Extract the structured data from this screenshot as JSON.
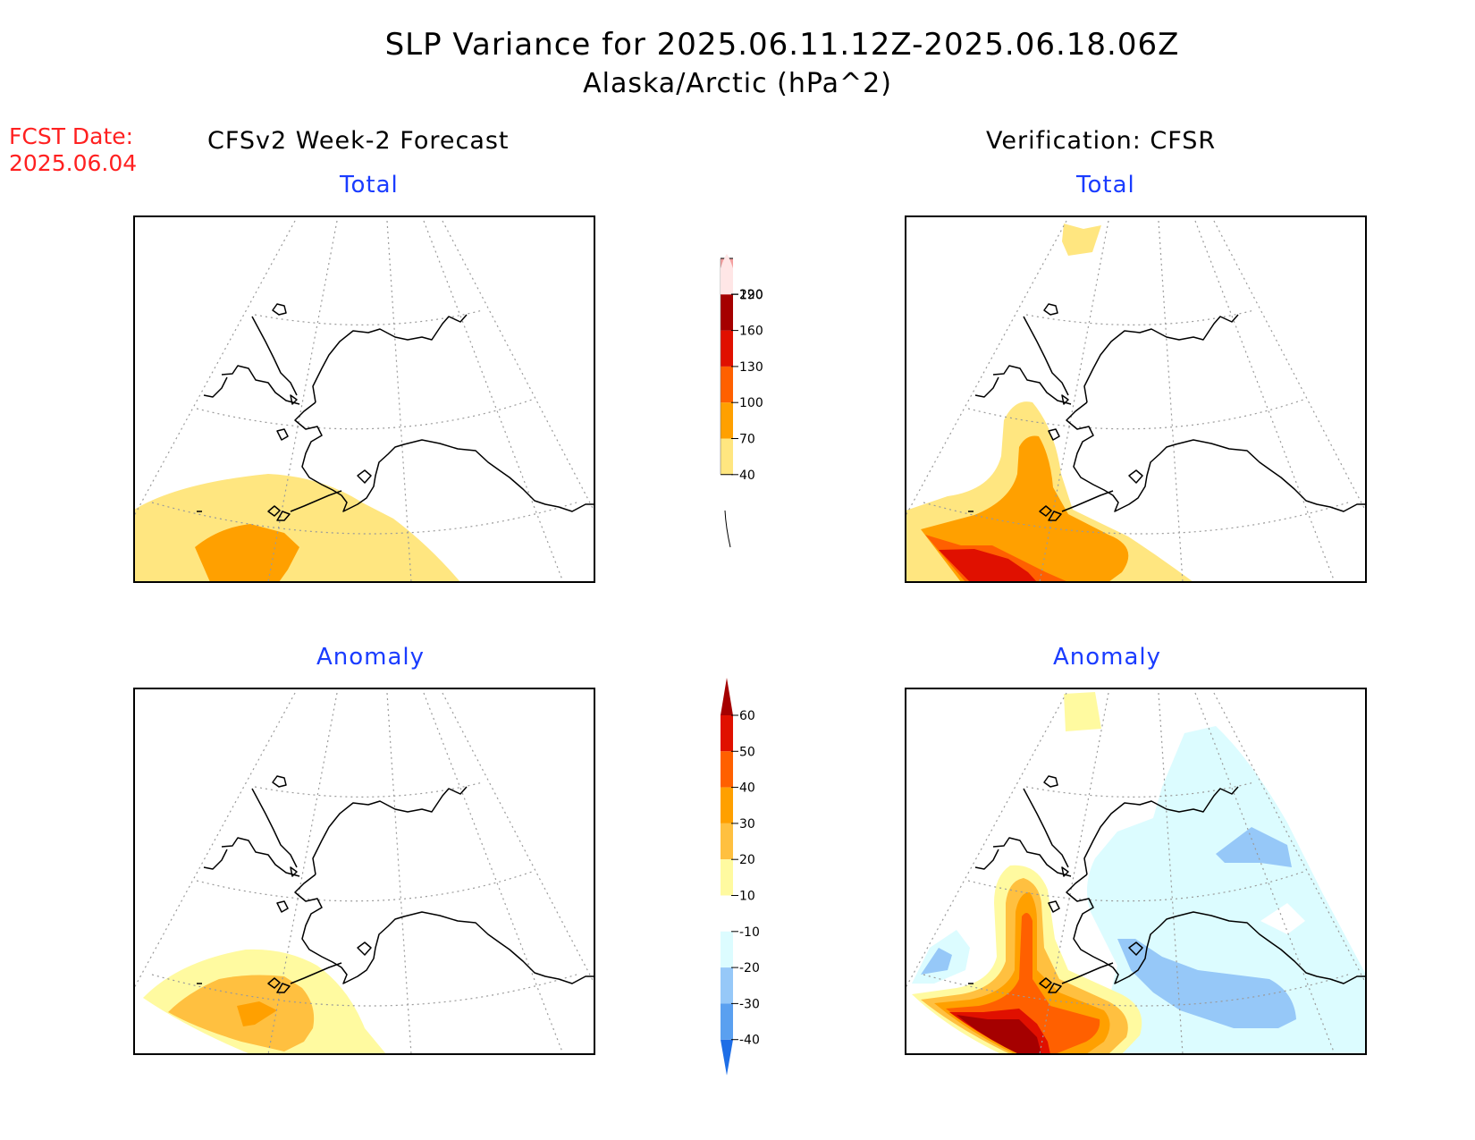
{
  "title": "SLP Variance for 2025.06.11.12Z-2025.06.18.06Z",
  "subtitle": "Alaska/Arctic (hPa^2)",
  "fcst_date": {
    "label": "FCST Date:",
    "value": "2025.06.04"
  },
  "left_header": "CFSv2 Week-2 Forecast",
  "right_header": "Verification: CFSR",
  "panels": {
    "forecast_total": "Total",
    "verification_total": "Total",
    "forecast_anomaly": "Anomaly",
    "verification_anomaly": "Anomaly"
  },
  "colors": {
    "total_bins": [
      "#ffe680",
      "#ffa000",
      "#ff6000",
      "#e01000",
      "#a50000",
      "#f4a0a0",
      "#ffe0e0"
    ],
    "anomaly_bins": [
      "#1e6ee6",
      "#5aa0f0",
      "#96c8f8",
      "#dcfcff",
      "#ffffff",
      "#fffaa0",
      "#ffc040",
      "#ffa000",
      "#ff6000",
      "#e01000",
      "#a50000"
    ]
  },
  "legends": {
    "total": {
      "labels": [
        "220",
        "190",
        "160",
        "130",
        "100",
        "70",
        "40"
      ]
    },
    "anomaly": {
      "labels": [
        "60",
        "50",
        "40",
        "30",
        "20",
        "10",
        "-10",
        "-20",
        "-30",
        "-40"
      ]
    }
  }
}
